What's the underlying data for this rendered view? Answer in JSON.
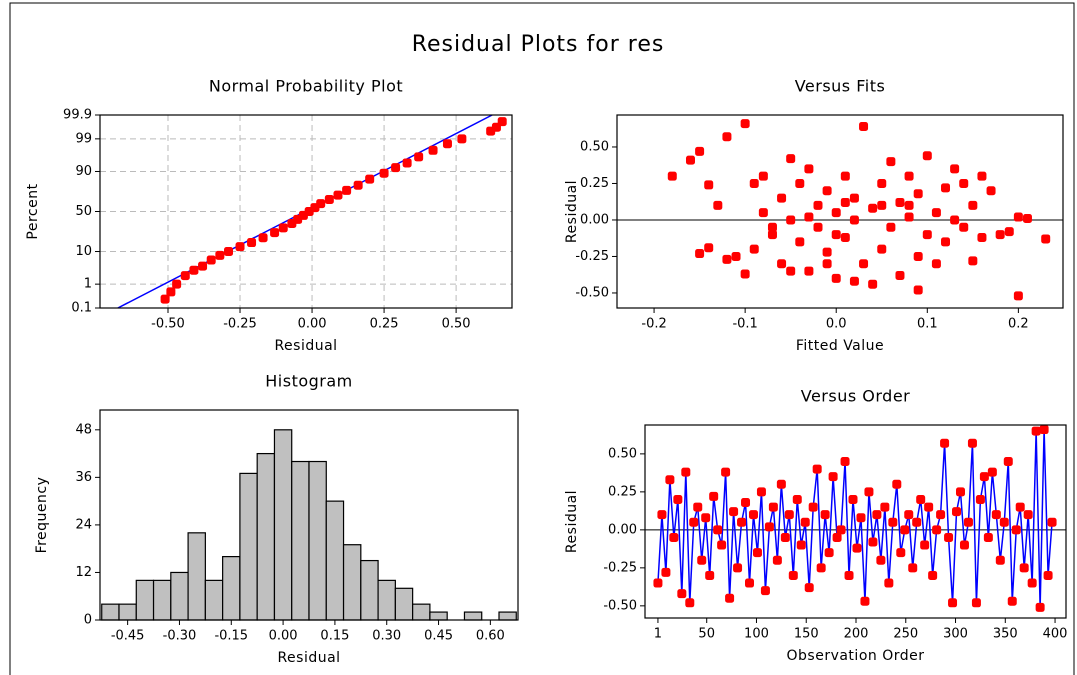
{
  "title": "Residual Plots for res",
  "chart_data": [
    {
      "type": "probability",
      "title": "Normal Probability Plot",
      "xlabel": "Residual",
      "ylabel": "Percent",
      "yscale": "probability",
      "grid": true,
      "color": "#ff0000",
      "x": [
        -0.51,
        -0.49,
        -0.47,
        -0.44,
        -0.41,
        -0.38,
        -0.35,
        -0.32,
        -0.29,
        -0.25,
        -0.21,
        -0.17,
        -0.13,
        -0.1,
        -0.07,
        -0.05,
        -0.03,
        -0.01,
        0.01,
        0.03,
        0.06,
        0.09,
        0.12,
        0.16,
        0.2,
        0.25,
        0.29,
        0.33,
        0.37,
        0.42,
        0.47,
        0.52,
        0.62,
        0.64,
        0.66
      ],
      "values": [
        0.25,
        0.5,
        1,
        2,
        3,
        4,
        6,
        8,
        10,
        13,
        16,
        20,
        25,
        30,
        35,
        40,
        45,
        50,
        55,
        60,
        65,
        70,
        75,
        80,
        85,
        89,
        92,
        94,
        96,
        97.5,
        98.5,
        99,
        99.5,
        99.65,
        99.8
      ],
      "fit_line": {
        "x": [
          -0.674,
          0.625
        ],
        "values": [
          0.1,
          99.9
        ],
        "color": "#0000ff"
      },
      "xlim": [
        -0.736,
        0.694
      ],
      "ylim": [
        0.1,
        99.9
      ],
      "xticks": [
        {
          "value": -0.5,
          "label": "-0.50"
        },
        -0.25,
        {
          "value": 0,
          "label": "0.00"
        },
        0.25,
        {
          "value": 0.5,
          "label": "0.50"
        }
      ],
      "yticks": [
        0.1,
        1,
        10,
        50,
        90,
        99,
        99.9
      ]
    },
    {
      "type": "histogram",
      "title": "Histogram",
      "xlabel": "Residual",
      "ylabel": "Frequency",
      "color": "#c0c0c0",
      "bins": [
        -0.525,
        -0.475,
        -0.425,
        -0.375,
        -0.325,
        -0.275,
        -0.225,
        -0.175,
        -0.125,
        -0.075,
        -0.025,
        0.025,
        0.075,
        0.125,
        0.175,
        0.225,
        0.275,
        0.325,
        0.375,
        0.425,
        0.475,
        0.525,
        0.575,
        0.625,
        0.675
      ],
      "values": [
        4,
        4,
        10,
        10,
        12,
        22,
        10,
        16,
        37,
        42,
        48,
        40,
        40,
        30,
        19,
        15,
        10,
        8,
        4,
        2,
        0,
        2,
        0,
        2
      ],
      "xlim": [
        -0.53,
        0.68
      ],
      "ylim": [
        0,
        53
      ],
      "xticks": [
        -0.45,
        {
          "value": -0.3,
          "label": "-0.30"
        },
        -0.15,
        {
          "value": 0,
          "label": "0.00"
        },
        0.15,
        {
          "value": 0.3,
          "label": "0.30"
        },
        0.45,
        {
          "value": 0.6,
          "label": "0.60"
        }
      ],
      "yticks": [
        0,
        12,
        24,
        36,
        48
      ]
    },
    {
      "type": "scatter",
      "title": "Versus Fits",
      "xlabel": "Fitted Value",
      "ylabel": "Residual",
      "color": "#ff0000",
      "reference_line": 0,
      "x": [
        -0.18,
        -0.16,
        -0.15,
        -0.14,
        -0.13,
        -0.15,
        -0.14,
        -0.12,
        -0.11,
        -0.12,
        -0.1,
        -0.1,
        -0.09,
        -0.08,
        -0.08,
        -0.07,
        -0.06,
        -0.06,
        -0.05,
        -0.05,
        -0.04,
        -0.04,
        -0.03,
        -0.03,
        -0.02,
        -0.02,
        -0.01,
        -0.01,
        0.0,
        0.0,
        0.01,
        0.01,
        0.02,
        0.02,
        0.03,
        0.03,
        0.04,
        0.04,
        0.05,
        0.05,
        0.06,
        0.06,
        0.07,
        0.07,
        0.08,
        0.08,
        0.09,
        0.09,
        0.1,
        0.1,
        0.11,
        0.11,
        0.12,
        0.12,
        0.13,
        0.13,
        0.14,
        0.14,
        0.15,
        0.15,
        0.16,
        0.16,
        0.17,
        0.18,
        0.19,
        0.2,
        0.21,
        0.2,
        0.23,
        -0.09,
        -0.07,
        0.0,
        -0.03,
        0.01,
        0.05,
        -0.01,
        0.09,
        0.08,
        0.02,
        -0.05
      ],
      "values": [
        0.3,
        0.41,
        0.47,
        0.24,
        0.1,
        -0.23,
        -0.19,
        -0.27,
        -0.25,
        0.57,
        0.66,
        -0.37,
        -0.2,
        0.05,
        0.3,
        -0.1,
        0.15,
        -0.3,
        0.42,
        0.0,
        -0.15,
        0.25,
        0.35,
        -0.35,
        0.1,
        -0.05,
        0.2,
        -0.22,
        0.05,
        -0.4,
        0.3,
        -0.12,
        0.0,
        0.15,
        0.64,
        -0.3,
        -0.44,
        0.08,
        0.25,
        -0.2,
        0.4,
        -0.05,
        0.12,
        -0.38,
        0.02,
        0.3,
        -0.25,
        0.18,
        0.44,
        -0.1,
        0.05,
        -0.3,
        0.22,
        -0.15,
        0.35,
        0.0,
        -0.05,
        0.25,
        -0.28,
        0.1,
        -0.12,
        0.3,
        0.2,
        -0.1,
        -0.08,
        0.02,
        0.01,
        -0.52,
        -0.13,
        0.25,
        -0.05,
        -0.1,
        0.02,
        0.12,
        0.1,
        -0.3,
        -0.48,
        0.1,
        -0.42,
        -0.35
      ],
      "xlim": [
        -0.2407,
        0.249
      ],
      "ylim": [
        -0.603,
        0.719
      ],
      "xticks": [
        -0.2,
        -0.1,
        {
          "value": 0,
          "label": "0.0"
        },
        0.1,
        0.2
      ],
      "yticks": [
        {
          "value": -0.5,
          "label": "-0.50"
        },
        -0.25,
        {
          "value": 0,
          "label": "0.00"
        },
        0.25,
        {
          "value": 0.5,
          "label": "0.50"
        }
      ]
    },
    {
      "type": "line",
      "title": "Versus Order",
      "xlabel": "Observation Order",
      "ylabel": "Residual",
      "color": "#ff0000",
      "line_color": "#0000ff",
      "reference_line": 0,
      "x": [
        1,
        5,
        9,
        13,
        17,
        21,
        25,
        29,
        33,
        37,
        41,
        45,
        49,
        53,
        57,
        61,
        65,
        69,
        73,
        77,
        81,
        85,
        89,
        93,
        97,
        101,
        105,
        109,
        113,
        117,
        121,
        125,
        129,
        133,
        137,
        141,
        145,
        149,
        153,
        157,
        161,
        165,
        169,
        173,
        177,
        181,
        185,
        189,
        193,
        197,
        201,
        205,
        209,
        213,
        217,
        221,
        225,
        229,
        233,
        237,
        241,
        245,
        249,
        253,
        257,
        261,
        265,
        269,
        273,
        277,
        281,
        285,
        289,
        293,
        297,
        301,
        305,
        309,
        313,
        317,
        321,
        325,
        329,
        333,
        337,
        341,
        345,
        349,
        353,
        357,
        361,
        365,
        369,
        373,
        377,
        381,
        385,
        389,
        393,
        397
      ],
      "values": [
        -0.35,
        0.1,
        -0.28,
        0.33,
        -0.05,
        0.2,
        -0.42,
        0.38,
        -0.48,
        0.05,
        0.15,
        -0.2,
        0.08,
        -0.3,
        0.22,
        0.0,
        -0.1,
        0.38,
        -0.45,
        0.12,
        -0.25,
        0.05,
        0.18,
        -0.35,
        0.1,
        -0.15,
        0.25,
        -0.4,
        0.02,
        0.15,
        -0.2,
        0.3,
        -0.05,
        0.1,
        -0.3,
        0.2,
        -0.1,
        0.05,
        -0.38,
        0.15,
        0.4,
        -0.25,
        0.1,
        -0.15,
        0.35,
        -0.05,
        0.0,
        0.45,
        -0.3,
        0.2,
        -0.12,
        0.08,
        -0.47,
        0.25,
        -0.08,
        0.1,
        -0.2,
        0.15,
        -0.35,
        0.05,
        0.3,
        -0.15,
        0.0,
        0.1,
        -0.25,
        0.05,
        0.2,
        -0.1,
        0.15,
        -0.3,
        0.0,
        0.1,
        0.57,
        -0.05,
        -0.48,
        0.12,
        0.25,
        -0.1,
        0.05,
        0.57,
        -0.48,
        0.2,
        0.35,
        -0.05,
        0.38,
        0.1,
        -0.2,
        0.05,
        0.45,
        -0.47,
        0.0,
        0.15,
        -0.25,
        0.1,
        -0.35,
        0.65,
        -0.51,
        0.66,
        -0.3,
        0.05
      ],
      "xlim": [
        -12,
        411
      ],
      "ylim": [
        -0.58,
        0.69
      ],
      "xticks": [
        1,
        50,
        100,
        150,
        200,
        250,
        300,
        350,
        400
      ],
      "yticks": [
        {
          "value": -0.5,
          "label": "-0.50"
        },
        -0.25,
        {
          "value": 0,
          "label": "0.00"
        },
        0.25,
        {
          "value": 0.5,
          "label": "0.50"
        }
      ]
    }
  ]
}
